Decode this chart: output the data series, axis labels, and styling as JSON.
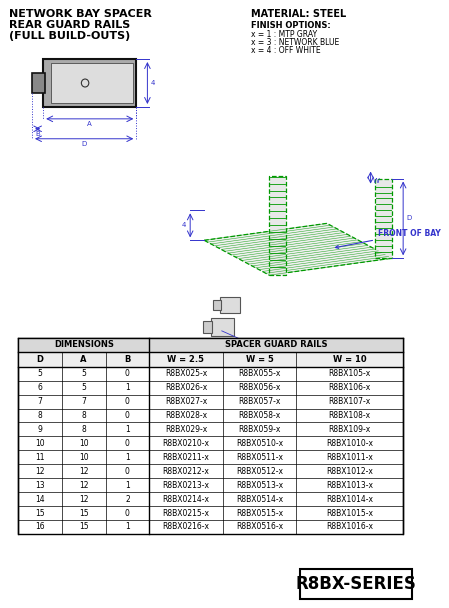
{
  "title_line1": "NETWORK BAY SPACER",
  "title_line2": "REAR GUARD RAILS",
  "title_line3": "(FULL BUILD-OUTS)",
  "material_text": "MATERIAL: STEEL",
  "finish_line1": "FINISH OPTIONS:",
  "finish_line2": "x = 1 : MTP GRAY",
  "finish_line3": "x = 3 : NETWORK BLUE",
  "finish_line4": "x = 4 : OFF WHITE",
  "front_of_bay_label": "FRONT OF BAY",
  "series_label": "R8BX-SERIES",
  "bg_color": "#ffffff",
  "table_rows": [
    [
      "5",
      "5",
      "0",
      "R8BX025-x",
      "R8BX055-x",
      "R8BX105-x"
    ],
    [
      "6",
      "5",
      "1",
      "R8BX026-x",
      "R8BX056-x",
      "R8BX106-x"
    ],
    [
      "7",
      "7",
      "0",
      "R8BX027-x",
      "R8BX057-x",
      "R8BX107-x"
    ],
    [
      "8",
      "8",
      "0",
      "R8BX028-x",
      "R8BX058-x",
      "R8BX108-x"
    ],
    [
      "9",
      "8",
      "1",
      "R8BX029-x",
      "R8BX059-x",
      "R8BX109-x"
    ],
    [
      "10",
      "10",
      "0",
      "R8BX0210-x",
      "R8BX0510-x",
      "R8BX1010-x"
    ],
    [
      "11",
      "10",
      "1",
      "R8BX0211-x",
      "R8BX0511-x",
      "R8BX1011-x"
    ],
    [
      "12",
      "12",
      "0",
      "R8BX0212-x",
      "R8BX0512-x",
      "R8BX1012-x"
    ],
    [
      "13",
      "12",
      "1",
      "R8BX0213-x",
      "R8BX0513-x",
      "R8BX1013-x"
    ],
    [
      "14",
      "12",
      "2",
      "R8BX0214-x",
      "R8BX0514-x",
      "R8BX1014-x"
    ],
    [
      "15",
      "15",
      "0",
      "R8BX0215-x",
      "R8BX0515-x",
      "R8BX1015-x"
    ],
    [
      "16",
      "15",
      "1",
      "R8BX0216-x",
      "R8BX0516-x",
      "R8BX1016-x"
    ]
  ],
  "col_headers": [
    "D",
    "A",
    "B",
    "W = 2.5",
    "W = 5",
    "W = 10"
  ],
  "group_headers": [
    "DIMENSIONS",
    "SPACER GUARD RAILS"
  ],
  "diagram_green": "#009900",
  "diagram_blue": "#3333cc",
  "diagram_black": "#111111"
}
